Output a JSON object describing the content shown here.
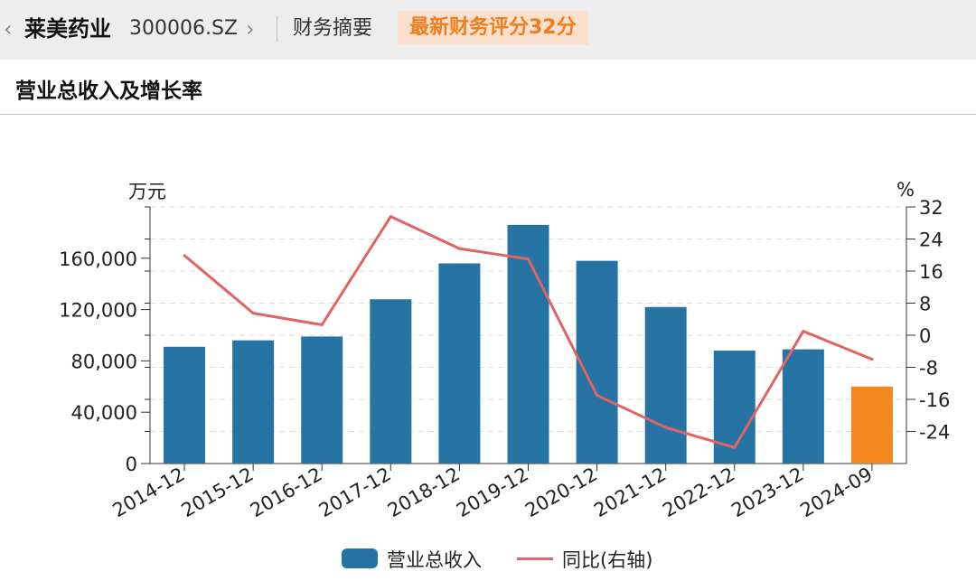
{
  "header": {
    "company_name": "莱美药业",
    "stock_code": "300006.SZ",
    "section_label": "财务摘要",
    "score_badge": "最新财务评分32分"
  },
  "chart_data": {
    "type": "bar",
    "title": "营业总收入及增长率",
    "categories": [
      "2014-12",
      "2015-12",
      "2016-12",
      "2017-12",
      "2018-12",
      "2019-12",
      "2020-12",
      "2021-12",
      "2022-12",
      "2023-12",
      "2024-09"
    ],
    "series": [
      {
        "name": "营业总收入",
        "type": "bar",
        "axis": "left",
        "color": "#2574a3",
        "highlight_color": "#f5891d",
        "highlight_index": 10,
        "values": [
          91000,
          96000,
          99000,
          128000,
          156000,
          186000,
          158000,
          122000,
          88000,
          89000,
          60000
        ]
      },
      {
        "name": "同比(右轴)",
        "type": "line",
        "axis": "right",
        "color": "#e06464",
        "values": [
          19.9,
          5.5,
          2.6,
          29.6,
          21.6,
          19.0,
          -15.0,
          -23.0,
          -28.0,
          1.0,
          -6.0
        ]
      }
    ],
    "y_left": {
      "unit": "万元",
      "ylim": [
        0,
        200000
      ],
      "ticks": [
        0,
        40000,
        80000,
        120000,
        160000
      ],
      "tick_labels": [
        "0",
        "40,000",
        "80,000",
        "120,000",
        "160,000"
      ]
    },
    "y_right": {
      "unit": "%",
      "ylim": [
        -32,
        32
      ],
      "ticks": [
        -24,
        -16,
        -8,
        0,
        8,
        16,
        24,
        32
      ],
      "tick_labels": [
        "-24",
        "-16",
        "-8",
        "0",
        "8",
        "16",
        "24",
        "32"
      ]
    },
    "grid": true,
    "legend_position": "bottom"
  }
}
